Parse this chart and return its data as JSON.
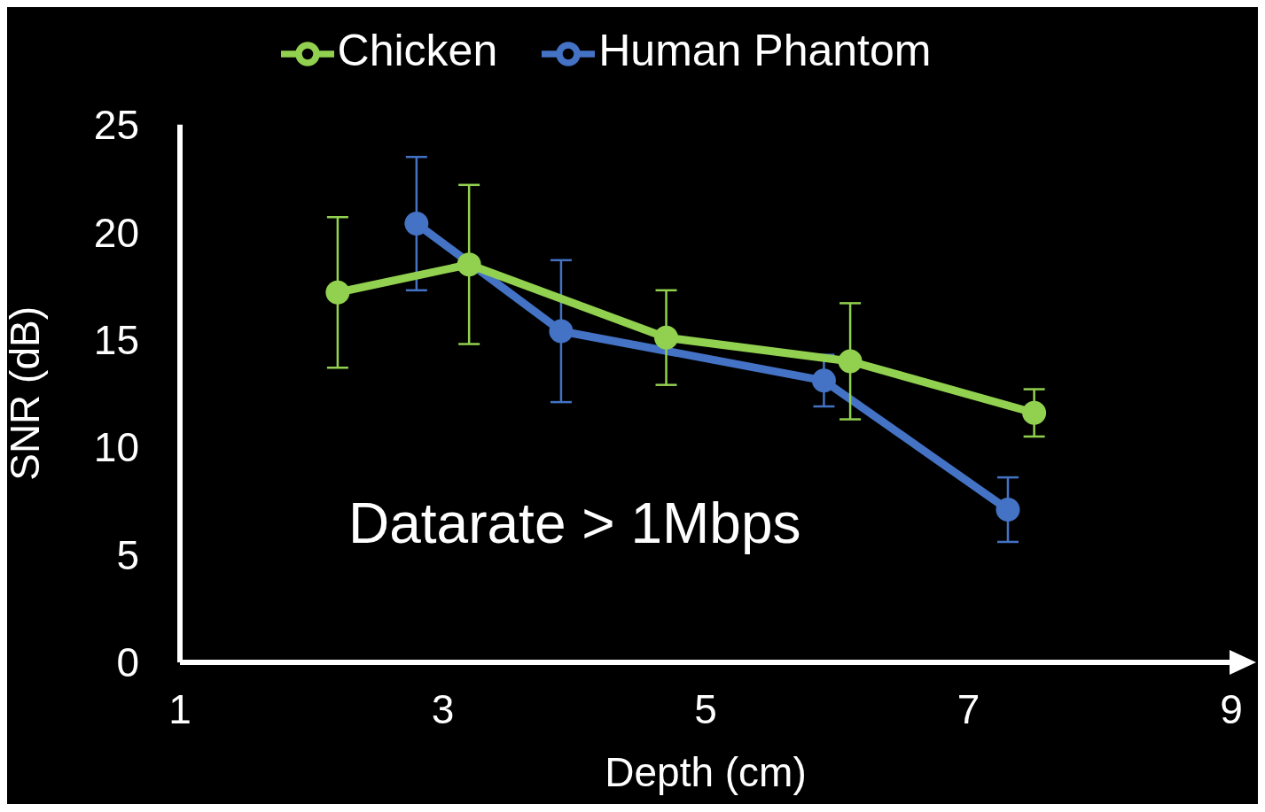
{
  "chart_data": {
    "type": "line",
    "xlabel": "Depth (cm)",
    "ylabel": "SNR (dB)",
    "series": [
      {
        "name": "Human Phantom",
        "color": "#4472c4",
        "x": [
          2.8,
          3.9,
          5.9,
          7.3
        ],
        "values": [
          20.4,
          15.4,
          13.1,
          7.1
        ],
        "errors": [
          3.1,
          3.3,
          1.2,
          1.5
        ]
      },
      {
        "name": "Chicken",
        "color": "#92d050",
        "x": [
          2.2,
          3.2,
          4.7,
          6.1,
          7.5
        ],
        "values": [
          17.2,
          18.5,
          15.1,
          14.0,
          11.6
        ],
        "errors": [
          3.5,
          3.7,
          2.2,
          2.7,
          1.1
        ]
      }
    ],
    "xlim": [
      1,
      9
    ],
    "xticks": [
      1,
      3,
      5,
      7,
      9
    ],
    "ylim": [
      0,
      25
    ],
    "yticks": [
      0,
      5,
      10,
      15,
      20,
      25
    ],
    "grid": false,
    "legend": "top",
    "marker": "circle",
    "line_style": "solid",
    "annotations": [
      "Datarate > 1Mbps"
    ]
  }
}
